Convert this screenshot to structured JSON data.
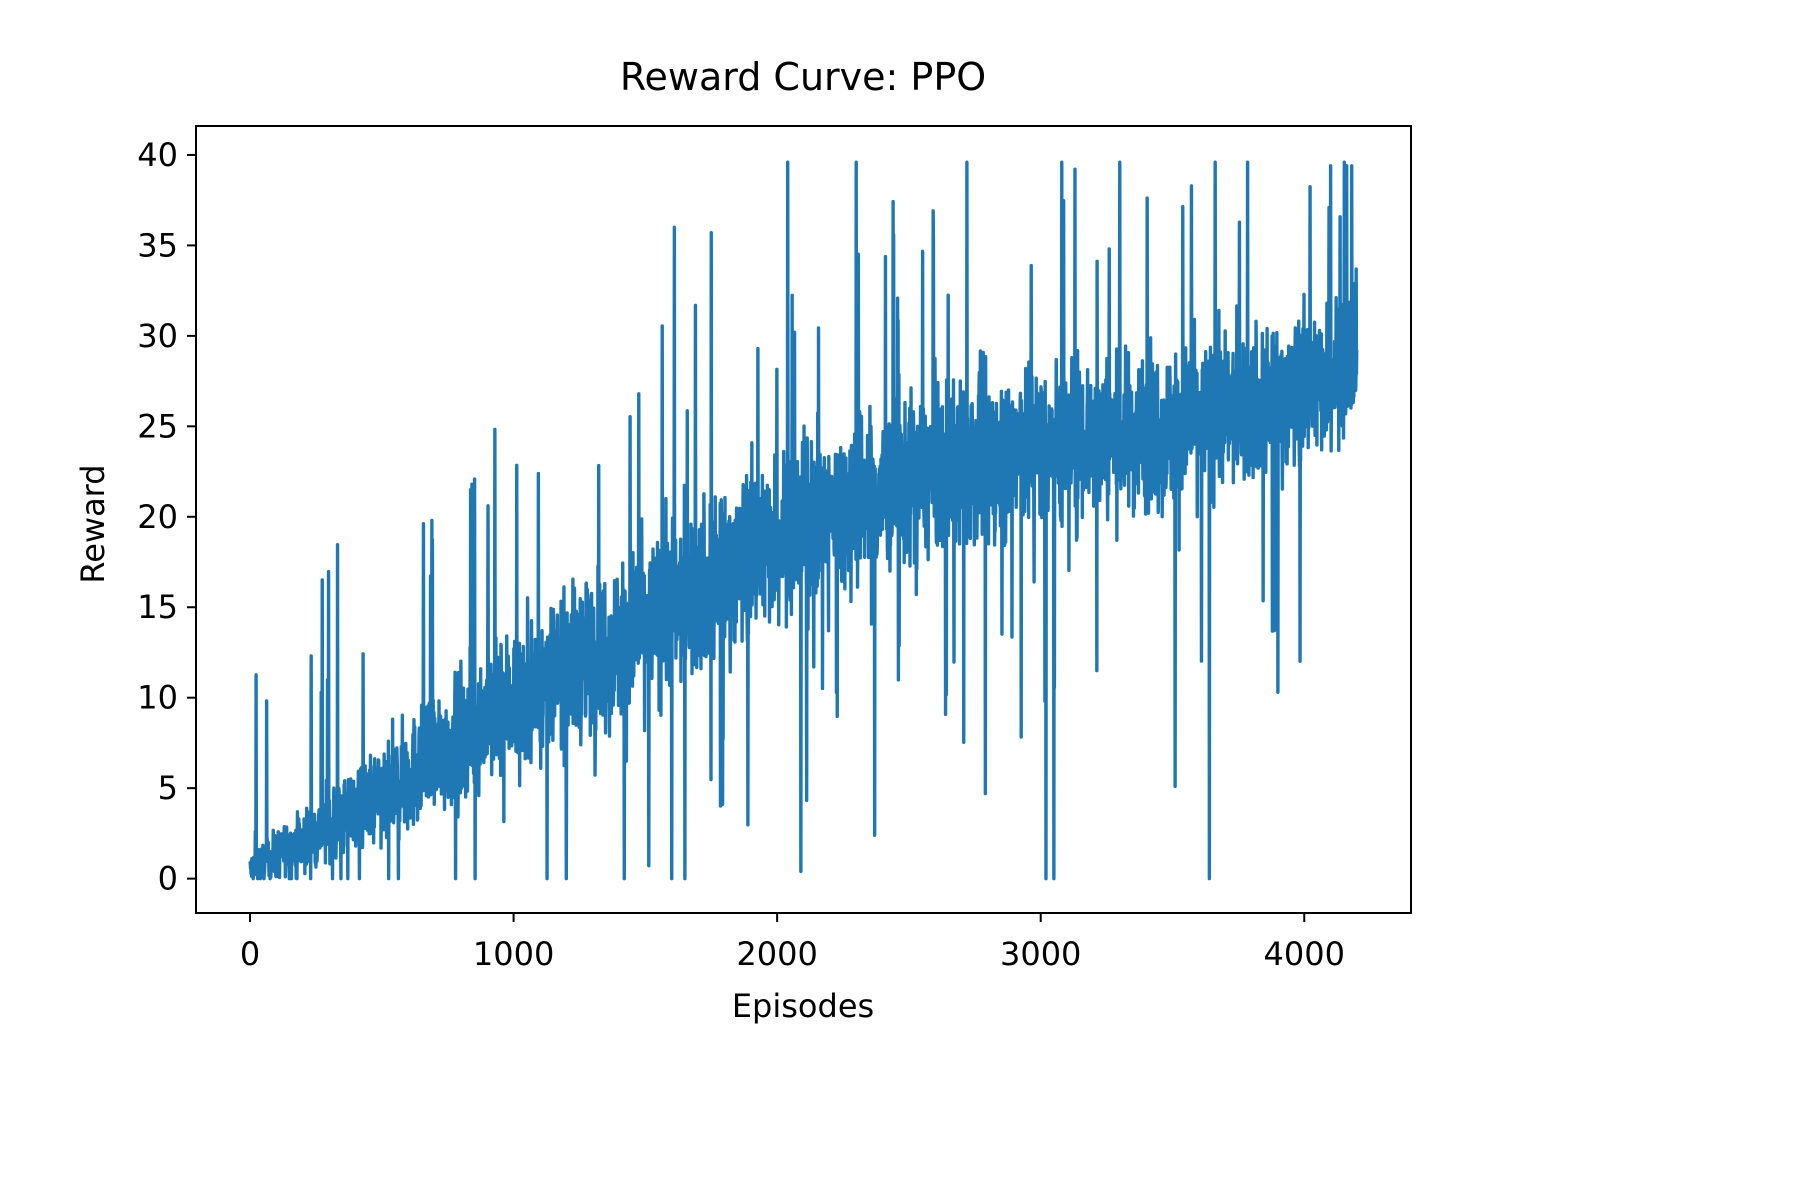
{
  "chart_data": {
    "type": "line",
    "title": "Reward Curve: PPO",
    "xlabel": "Episodes",
    "ylabel": "Reward",
    "xlim": [
      -205,
      4405
    ],
    "ylim": [
      -1.9,
      41.6
    ],
    "xticks": [
      0,
      1000,
      2000,
      3000,
      4000
    ],
    "xtick_labels": [
      "0",
      "1000",
      "2000",
      "3000",
      "4000"
    ],
    "yticks": [
      0,
      5,
      10,
      15,
      20,
      25,
      30,
      35,
      40
    ],
    "ytick_labels": [
      "0",
      "5",
      "10",
      "15",
      "20",
      "25",
      "30",
      "35",
      "40"
    ],
    "grid": false,
    "series": [
      {
        "color": "#1f77b4",
        "trend_points": [
          {
            "x": 0,
            "y": 0.5
          },
          {
            "x": 500,
            "y": 4.5
          },
          {
            "x": 1000,
            "y": 10
          },
          {
            "x": 1500,
            "y": 14
          },
          {
            "x": 2000,
            "y": 19
          },
          {
            "x": 2500,
            "y": 22
          },
          {
            "x": 3000,
            "y": 24
          },
          {
            "x": 3500,
            "y": 25
          },
          {
            "x": 4000,
            "y": 27
          },
          {
            "x": 4200,
            "y": 29
          }
        ],
        "band_half_width": [
          {
            "x": 0,
            "y": 0.8
          },
          {
            "x": 500,
            "y": 2.5
          },
          {
            "x": 1000,
            "y": 3.5
          },
          {
            "x": 1500,
            "y": 4.0
          },
          {
            "x": 2000,
            "y": 4.0
          },
          {
            "x": 2500,
            "y": 4.0
          },
          {
            "x": 3000,
            "y": 4.0
          },
          {
            "x": 4000,
            "y": 3.5
          },
          {
            "x": 4200,
            "y": 3.5
          }
        ],
        "n_points": 4200,
        "notable_points": [
          {
            "x": 20,
            "y": 2.6
          },
          {
            "x": 270,
            "y": 10.3
          },
          {
            "x": 690,
            "y": 19.8
          },
          {
            "x": 1610,
            "y": 36
          },
          {
            "x": 1750,
            "y": 35.7
          },
          {
            "x": 2040,
            "y": 39.6
          },
          {
            "x": 2300,
            "y": 39.6
          },
          {
            "x": 2720,
            "y": 39.6
          },
          {
            "x": 3080,
            "y": 39.6
          },
          {
            "x": 3300,
            "y": 39.6
          },
          {
            "x": 4100,
            "y": 39.4
          },
          {
            "x": 4180,
            "y": 39.4
          },
          {
            "x": 2090,
            "y": 0.4
          },
          {
            "x": 2370,
            "y": 2.4
          },
          {
            "x": 2790,
            "y": 4.7
          },
          {
            "x": 3020,
            "y": 0
          },
          {
            "x": 3050,
            "y": 0
          },
          {
            "x": 3510,
            "y": 5.1
          },
          {
            "x": 3640,
            "y": 0
          },
          {
            "x": 3900,
            "y": 10.3
          },
          {
            "x": 1600,
            "y": 0
          },
          {
            "x": 1650,
            "y": 0
          },
          {
            "x": 780,
            "y": 0
          },
          {
            "x": 1200,
            "y": 0
          },
          {
            "x": 1420,
            "y": 0
          }
        ]
      }
    ]
  }
}
